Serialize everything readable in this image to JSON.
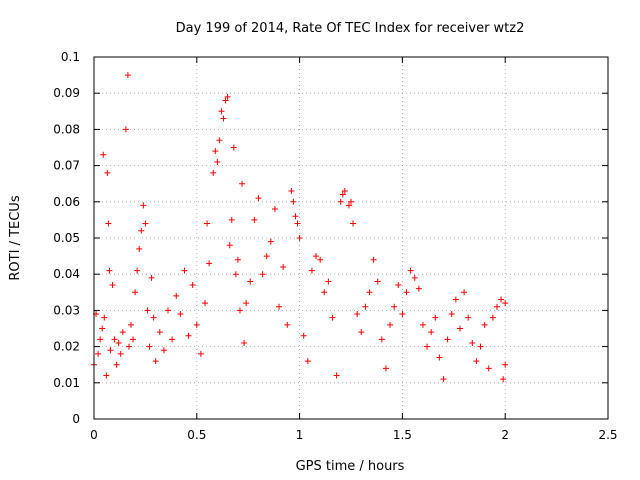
{
  "chart_data": {
    "type": "scatter",
    "title": "Day 199 of 2014, Rate Of TEC Index for receiver wtz2",
    "xlabel": "GPS time / hours",
    "ylabel": "ROTI / TECUs",
    "xlim": [
      0,
      2.5
    ],
    "ylim": [
      0,
      0.1
    ],
    "x_ticks": [
      0,
      0.5,
      1,
      1.5,
      2,
      2.5
    ],
    "x_tick_labels": [
      "0",
      "0.5",
      "1",
      "1.5",
      "2",
      "2.5"
    ],
    "y_ticks": [
      0,
      0.01,
      0.02,
      0.03,
      0.04,
      0.05,
      0.06,
      0.07,
      0.08,
      0.09,
      0.1
    ],
    "y_tick_labels": [
      "0",
      "0.01",
      "0.02",
      "0.03",
      "0.04",
      "0.05",
      "0.06",
      "0.07",
      "0.08",
      "0.09",
      "0.1"
    ],
    "grid": true,
    "marker": "+",
    "marker_color": "#ff0000",
    "series": [
      {
        "name": "ROTI",
        "points": [
          [
            0.0,
            0.015
          ],
          [
            0.01,
            0.029
          ],
          [
            0.02,
            0.018
          ],
          [
            0.03,
            0.022
          ],
          [
            0.04,
            0.025
          ],
          [
            0.045,
            0.073
          ],
          [
            0.05,
            0.028
          ],
          [
            0.06,
            0.012
          ],
          [
            0.065,
            0.068
          ],
          [
            0.07,
            0.054
          ],
          [
            0.075,
            0.041
          ],
          [
            0.08,
            0.019
          ],
          [
            0.09,
            0.037
          ],
          [
            0.1,
            0.022
          ],
          [
            0.11,
            0.015
          ],
          [
            0.12,
            0.021
          ],
          [
            0.13,
            0.018
          ],
          [
            0.14,
            0.024
          ],
          [
            0.155,
            0.08
          ],
          [
            0.165,
            0.095
          ],
          [
            0.17,
            0.02
          ],
          [
            0.18,
            0.026
          ],
          [
            0.19,
            0.022
          ],
          [
            0.2,
            0.035
          ],
          [
            0.21,
            0.041
          ],
          [
            0.22,
            0.047
          ],
          [
            0.23,
            0.052
          ],
          [
            0.24,
            0.059
          ],
          [
            0.25,
            0.054
          ],
          [
            0.26,
            0.03
          ],
          [
            0.27,
            0.02
          ],
          [
            0.28,
            0.039
          ],
          [
            0.29,
            0.028
          ],
          [
            0.3,
            0.016
          ],
          [
            0.32,
            0.024
          ],
          [
            0.34,
            0.019
          ],
          [
            0.36,
            0.03
          ],
          [
            0.38,
            0.022
          ],
          [
            0.4,
            0.034
          ],
          [
            0.42,
            0.029
          ],
          [
            0.44,
            0.041
          ],
          [
            0.46,
            0.023
          ],
          [
            0.48,
            0.037
          ],
          [
            0.5,
            0.026
          ],
          [
            0.52,
            0.018
          ],
          [
            0.54,
            0.032
          ],
          [
            0.55,
            0.054
          ],
          [
            0.56,
            0.043
          ],
          [
            0.58,
            0.068
          ],
          [
            0.59,
            0.074
          ],
          [
            0.6,
            0.071
          ],
          [
            0.61,
            0.077
          ],
          [
            0.62,
            0.085
          ],
          [
            0.63,
            0.083
          ],
          [
            0.64,
            0.088
          ],
          [
            0.65,
            0.089
          ],
          [
            0.66,
            0.048
          ],
          [
            0.67,
            0.055
          ],
          [
            0.68,
            0.075
          ],
          [
            0.69,
            0.04
          ],
          [
            0.7,
            0.044
          ],
          [
            0.71,
            0.03
          ],
          [
            0.72,
            0.065
          ],
          [
            0.73,
            0.021
          ],
          [
            0.74,
            0.032
          ],
          [
            0.76,
            0.038
          ],
          [
            0.78,
            0.055
          ],
          [
            0.8,
            0.061
          ],
          [
            0.82,
            0.04
          ],
          [
            0.84,
            0.045
          ],
          [
            0.86,
            0.049
          ],
          [
            0.88,
            0.058
          ],
          [
            0.9,
            0.031
          ],
          [
            0.92,
            0.042
          ],
          [
            0.94,
            0.026
          ],
          [
            0.96,
            0.063
          ],
          [
            0.97,
            0.06
          ],
          [
            0.98,
            0.056
          ],
          [
            0.99,
            0.054
          ],
          [
            1.0,
            0.05
          ],
          [
            1.02,
            0.023
          ],
          [
            1.04,
            0.016
          ],
          [
            1.06,
            0.041
          ],
          [
            1.08,
            0.045
          ],
          [
            1.1,
            0.044
          ],
          [
            1.12,
            0.035
          ],
          [
            1.14,
            0.038
          ],
          [
            1.16,
            0.028
          ],
          [
            1.18,
            0.012
          ],
          [
            1.2,
            0.06
          ],
          [
            1.21,
            0.062
          ],
          [
            1.22,
            0.063
          ],
          [
            1.24,
            0.059
          ],
          [
            1.25,
            0.06
          ],
          [
            1.26,
            0.054
          ],
          [
            1.28,
            0.029
          ],
          [
            1.3,
            0.024
          ],
          [
            1.32,
            0.031
          ],
          [
            1.34,
            0.035
          ],
          [
            1.36,
            0.044
          ],
          [
            1.38,
            0.038
          ],
          [
            1.4,
            0.022
          ],
          [
            1.42,
            0.014
          ],
          [
            1.44,
            0.026
          ],
          [
            1.46,
            0.031
          ],
          [
            1.48,
            0.037
          ],
          [
            1.5,
            0.029
          ],
          [
            1.52,
            0.035
          ],
          [
            1.54,
            0.041
          ],
          [
            1.56,
            0.039
          ],
          [
            1.58,
            0.036
          ],
          [
            1.6,
            0.026
          ],
          [
            1.62,
            0.02
          ],
          [
            1.64,
            0.024
          ],
          [
            1.66,
            0.028
          ],
          [
            1.68,
            0.017
          ],
          [
            1.7,
            0.011
          ],
          [
            1.72,
            0.022
          ],
          [
            1.74,
            0.029
          ],
          [
            1.76,
            0.033
          ],
          [
            1.78,
            0.025
          ],
          [
            1.8,
            0.035
          ],
          [
            1.82,
            0.028
          ],
          [
            1.84,
            0.021
          ],
          [
            1.86,
            0.016
          ],
          [
            1.88,
            0.02
          ],
          [
            1.9,
            0.026
          ],
          [
            1.92,
            0.014
          ],
          [
            1.94,
            0.028
          ],
          [
            1.96,
            0.031
          ],
          [
            1.98,
            0.033
          ],
          [
            2.0,
            0.032
          ],
          [
            2.0,
            0.015
          ],
          [
            1.99,
            0.011
          ]
        ]
      }
    ]
  }
}
